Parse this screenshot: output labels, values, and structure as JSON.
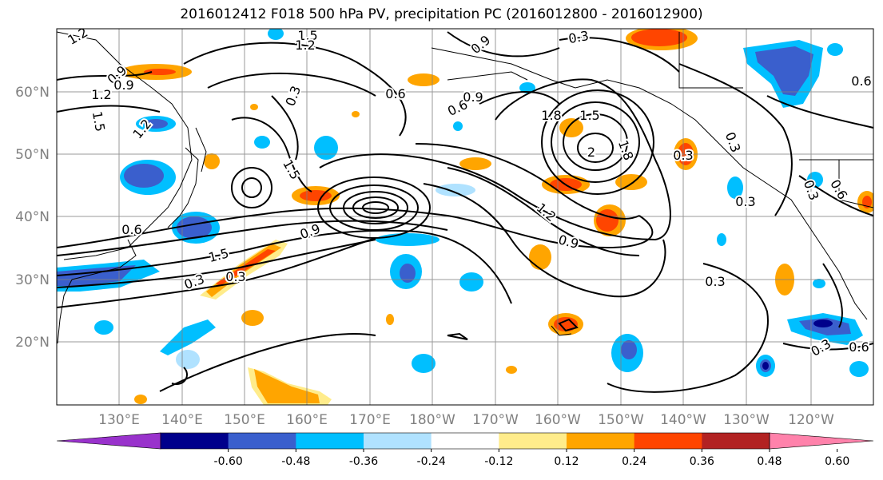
{
  "title": "2016012412 F018 500 hPa PV, precipitation PC (2016012800 - 2016012900)",
  "lat_labels": [
    "60°N",
    "50°N",
    "40°N",
    "30°N",
    "20°N"
  ],
  "lon_labels": [
    "130°E",
    "140°E",
    "150°E",
    "160°E",
    "170°E",
    "180°W",
    "170°W",
    "160°W",
    "150°W",
    "140°W",
    "130°W",
    "120°W"
  ],
  "contour_labels": [
    "1.2",
    "1.5",
    "1.2",
    "0.3",
    "0.9",
    "1.2",
    "1.5",
    "0.6",
    "0.9",
    "0.3",
    "0.6",
    "0.9",
    "0.6",
    "1.2",
    "0.9",
    "1.5",
    "0.3",
    "1.5",
    "1.8",
    "2",
    "1.8",
    "0.3",
    "0.3",
    "0.6",
    "0.3",
    "1.2",
    "0.9",
    "0.9",
    "1.5",
    "0.6",
    "0.3",
    "0.3",
    "0.3",
    "0.6",
    "0.3"
  ],
  "colorbar": {
    "ticks": [
      "-0.60",
      "-0.48",
      "-0.36",
      "-0.24",
      "-0.12",
      "0.12",
      "0.24",
      "0.36",
      "0.48",
      "0.60"
    ],
    "colors": [
      "#9932cc",
      "#00008b",
      "#3a5fcd",
      "#00bfff",
      "#b0e2ff",
      "#ffffff",
      "#ffec8b",
      "#ffa500",
      "#ff4500",
      "#b22222",
      "#ff82ab"
    ]
  },
  "colors": {
    "contour": "#000000",
    "grid": "#808080",
    "coast": "#000000"
  }
}
